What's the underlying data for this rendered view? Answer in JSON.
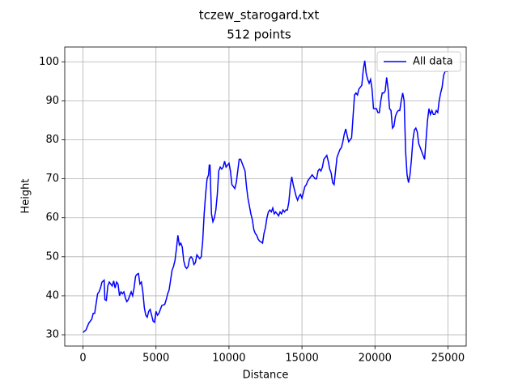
{
  "chart_data": {
    "type": "line",
    "title": "tczew_starogard.txt",
    "subtitle": "512 points",
    "xlabel": "Distance",
    "ylabel": "Height",
    "xlim": [
      -1250,
      26250
    ],
    "ylim": [
      27.1,
      103.8
    ],
    "xticks": [
      0,
      5000,
      10000,
      15000,
      20000,
      25000
    ],
    "yticks": [
      30,
      40,
      50,
      60,
      70,
      80,
      90,
      100
    ],
    "grid": true,
    "legend": "upper right",
    "x": [
      0,
      200,
      400,
      600,
      700,
      800,
      900,
      1000,
      1100,
      1200,
      1300,
      1450,
      1500,
      1600,
      1700,
      1800,
      1900,
      2000,
      2100,
      2200,
      2300,
      2400,
      2500,
      2600,
      2700,
      2800,
      2900,
      3000,
      3100,
      3200,
      3300,
      3400,
      3500,
      3600,
      3700,
      3800,
      3900,
      4000,
      4100,
      4200,
      4300,
      4400,
      4500,
      4600,
      4700,
      4800,
      4900,
      5000,
      5100,
      5200,
      5400,
      5600,
      5700,
      5800,
      5900,
      6000,
      6100,
      6200,
      6300,
      6400,
      6500,
      6600,
      6700,
      6800,
      6900,
      7000,
      7100,
      7200,
      7300,
      7400,
      7500,
      7600,
      7700,
      7800,
      7900,
      8000,
      8100,
      8200,
      8300,
      8400,
      8500,
      8600,
      8650,
      8700,
      8800,
      8900,
      9000,
      9100,
      9200,
      9300,
      9400,
      9500,
      9600,
      9700,
      9800,
      9900,
      10000,
      10100,
      10200,
      10300,
      10400,
      10500,
      10600,
      10700,
      10800,
      10900,
      11000,
      11100,
      11200,
      11300,
      11400,
      11500,
      11600,
      11700,
      11800,
      11900,
      12000,
      12100,
      12200,
      12300,
      12400,
      12500,
      12600,
      12700,
      12800,
      12900,
      13000,
      13100,
      13200,
      13300,
      13400,
      13500,
      13600,
      13700,
      13800,
      13900,
      14000,
      14100,
      14200,
      14300,
      14400,
      14500,
      14600,
      14700,
      14800,
      14900,
      15000,
      15100,
      15200,
      15300,
      15400,
      15500,
      15600,
      15700,
      15800,
      15900,
      16000,
      16100,
      16200,
      16300,
      16400,
      16500,
      16600,
      16700,
      16800,
      16900,
      17000,
      17100,
      17200,
      17300,
      17400,
      17500,
      17600,
      17700,
      17800,
      17900,
      18000,
      18100,
      18200,
      18300,
      18400,
      18500,
      18600,
      18700,
      18800,
      18900,
      19000,
      19100,
      19200,
      19300,
      19400,
      19500,
      19600,
      19700,
      19800,
      19900,
      20000,
      20100,
      20200,
      20300,
      20400,
      20500,
      20600,
      20700,
      20800,
      20900,
      21000,
      21100,
      21200,
      21300,
      21400,
      21500,
      21600,
      21700,
      21800,
      21900,
      22000,
      22100,
      22200,
      22300,
      22400,
      22500,
      22600,
      22700,
      22800,
      22900,
      23000,
      23100,
      23200,
      23300,
      23400,
      23500,
      23600,
      23700,
      23800,
      23900,
      24000,
      24100,
      24200,
      24300,
      24400,
      24500,
      24600,
      24700,
      24800,
      24900,
      25000
    ],
    "series": [
      {
        "name": "All data",
        "color": "#0000ff",
        "values": [
          30.6,
          31.2,
          33,
          34,
          35.5,
          35.5,
          38,
          40.5,
          41,
          42,
          43.5,
          44,
          39,
          38.8,
          42.5,
          43.5,
          43,
          42.5,
          43.8,
          42,
          43.5,
          43,
          40,
          41,
          40.5,
          41,
          39.5,
          38.5,
          39,
          40,
          41,
          40,
          42,
          45,
          45.5,
          45.7,
          43,
          43.5,
          41,
          37,
          35,
          34.5,
          36,
          36.5,
          35,
          33.5,
          33.2,
          36,
          35,
          35.5,
          37.5,
          37.8,
          39,
          40.5,
          41.5,
          44,
          46.5,
          47.5,
          49,
          52,
          55.5,
          53,
          53.5,
          52.5,
          49,
          47.5,
          47,
          47.5,
          49.5,
          50,
          49.5,
          48,
          48.5,
          50.5,
          50,
          49.5,
          50,
          54,
          61,
          66,
          70,
          71,
          73.5,
          73.5,
          61,
          59,
          60,
          62,
          66,
          72,
          73,
          72.5,
          73,
          74.5,
          73,
          73.5,
          74,
          72,
          68.5,
          68,
          67.5,
          69,
          72,
          75,
          75,
          74,
          73,
          72,
          68,
          65,
          63,
          61,
          59.5,
          57,
          56,
          55.5,
          54.5,
          54,
          53.8,
          53.5,
          56,
          57.5,
          60,
          61.5,
          62,
          61.5,
          62.5,
          61,
          61.5,
          61,
          60.5,
          61.5,
          61,
          62,
          61.5,
          62,
          62,
          64,
          68,
          70.5,
          68.5,
          67,
          65.5,
          64.5,
          65.5,
          66,
          65,
          66.5,
          68,
          68.5,
          69.5,
          70,
          70.5,
          71,
          70.5,
          70,
          70,
          72,
          72.5,
          72,
          73,
          75,
          75.5,
          76,
          74.5,
          72.5,
          71.5,
          69,
          68.5,
          72,
          75.5,
          76.5,
          77.5,
          78,
          79.5,
          81.5,
          82.8,
          81,
          79.5,
          80,
          80.5,
          86,
          91.5,
          92,
          91.5,
          93,
          93.5,
          94,
          98,
          100.3,
          97,
          95.5,
          94.5,
          95.5,
          93,
          88,
          88,
          88,
          87,
          87,
          90,
          92,
          92,
          92.5,
          96,
          93,
          88,
          87.5,
          83,
          83.5,
          86,
          87,
          87.5,
          87.5,
          90,
          92,
          90,
          77,
          71,
          69,
          71,
          75,
          80,
          82.5,
          83,
          82,
          79,
          78,
          77,
          76,
          75,
          80,
          85,
          88,
          86.5,
          87.5,
          86.5,
          86.5,
          87.5,
          87,
          90,
          92,
          93.5,
          96.5,
          97.5,
          97.5,
          97.5
        ]
      }
    ]
  }
}
